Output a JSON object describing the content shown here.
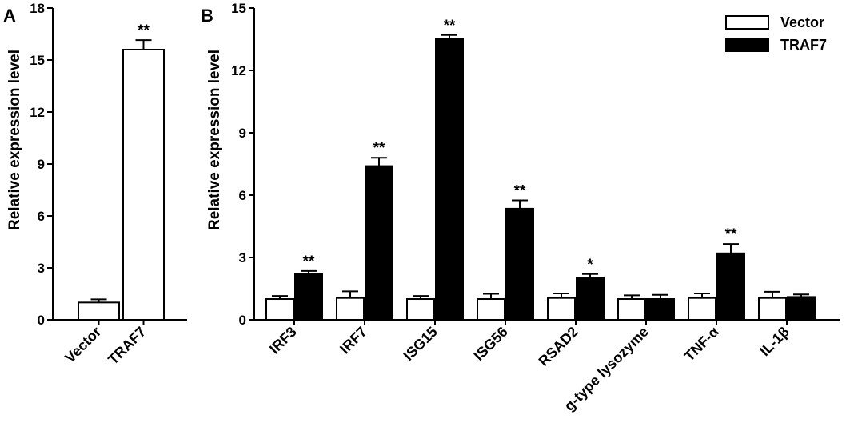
{
  "chart_data": [
    {
      "panel": "A",
      "type": "bar",
      "ylabel": "Relative expression level",
      "xlabel": "",
      "ylim": [
        0,
        18
      ],
      "yticks": [
        0,
        3,
        6,
        9,
        12,
        15,
        18
      ],
      "categories": [
        "Vector",
        "TRAF7"
      ],
      "series": [
        {
          "name": "",
          "values": [
            1.0,
            15.6
          ],
          "errors": [
            0.18,
            0.55
          ],
          "fill": "#ffffff",
          "significance": [
            "",
            "**"
          ]
        }
      ]
    },
    {
      "panel": "B",
      "type": "bar",
      "ylabel": "Relative expression level",
      "xlabel": "",
      "ylim": [
        0,
        15
      ],
      "yticks": [
        0,
        3,
        6,
        9,
        12,
        15
      ],
      "categories": [
        "IRF3",
        "IRF7",
        "ISG15",
        "ISG56",
        "RSAD2",
        "g-type lysozyme",
        "TNF-α",
        "IL-1β"
      ],
      "legend": {
        "position": "top-right"
      },
      "series": [
        {
          "name": "Vector",
          "fill": "#ffffff",
          "values": [
            1.0,
            1.05,
            1.0,
            1.0,
            1.05,
            1.0,
            1.05,
            1.05
          ],
          "errors": [
            0.15,
            0.32,
            0.15,
            0.25,
            0.22,
            0.18,
            0.22,
            0.3
          ],
          "significance": [
            "",
            "",
            "",
            "",
            "",
            "",
            "",
            ""
          ]
        },
        {
          "name": "TRAF7",
          "fill": "#000000",
          "values": [
            2.2,
            7.4,
            13.5,
            5.35,
            2.0,
            1.0,
            3.2,
            1.1
          ],
          "errors": [
            0.15,
            0.4,
            0.2,
            0.4,
            0.2,
            0.2,
            0.45,
            0.12
          ],
          "significance": [
            "**",
            "**",
            "**",
            "**",
            "*",
            "",
            "**",
            ""
          ]
        }
      ]
    }
  ]
}
